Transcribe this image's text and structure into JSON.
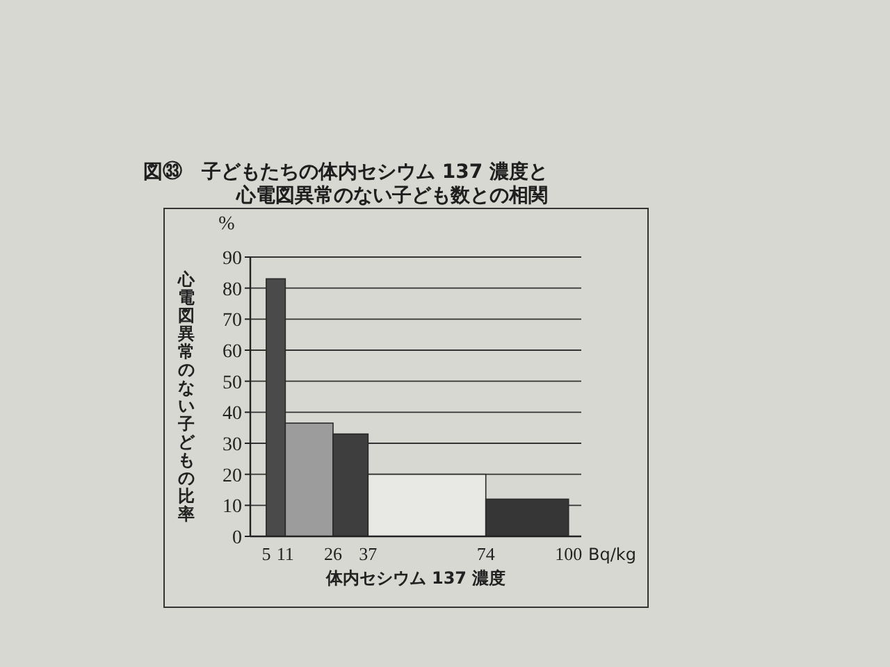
{
  "chart_data": {
    "type": "histogram",
    "title": "図㉝　子どもたちの体内セシウム 137 濃度と心電図異常のない子ども数との相関",
    "xlabel": "体内セシウム 137 濃度",
    "ylabel": "心電図異常のない子どもの比率",
    "annotations": [
      "%",
      "Bq/kg"
    ],
    "bins": [
      5,
      11,
      26,
      37,
      74,
      100
    ],
    "values": [
      83,
      36.5,
      33,
      20,
      12
    ],
    "colors": [
      "#4a4a4a",
      "#9c9c9c",
      "#3e3e3e",
      "#e8e8e4",
      "#363636"
    ],
    "xlim": [
      0,
      104
    ],
    "xticks": [
      5,
      11,
      26,
      37,
      74,
      100
    ],
    "ylim": [
      0,
      90
    ],
    "yticks": [
      0,
      10,
      20,
      30,
      40,
      50,
      60,
      70,
      80,
      90
    ],
    "grid": "y"
  }
}
